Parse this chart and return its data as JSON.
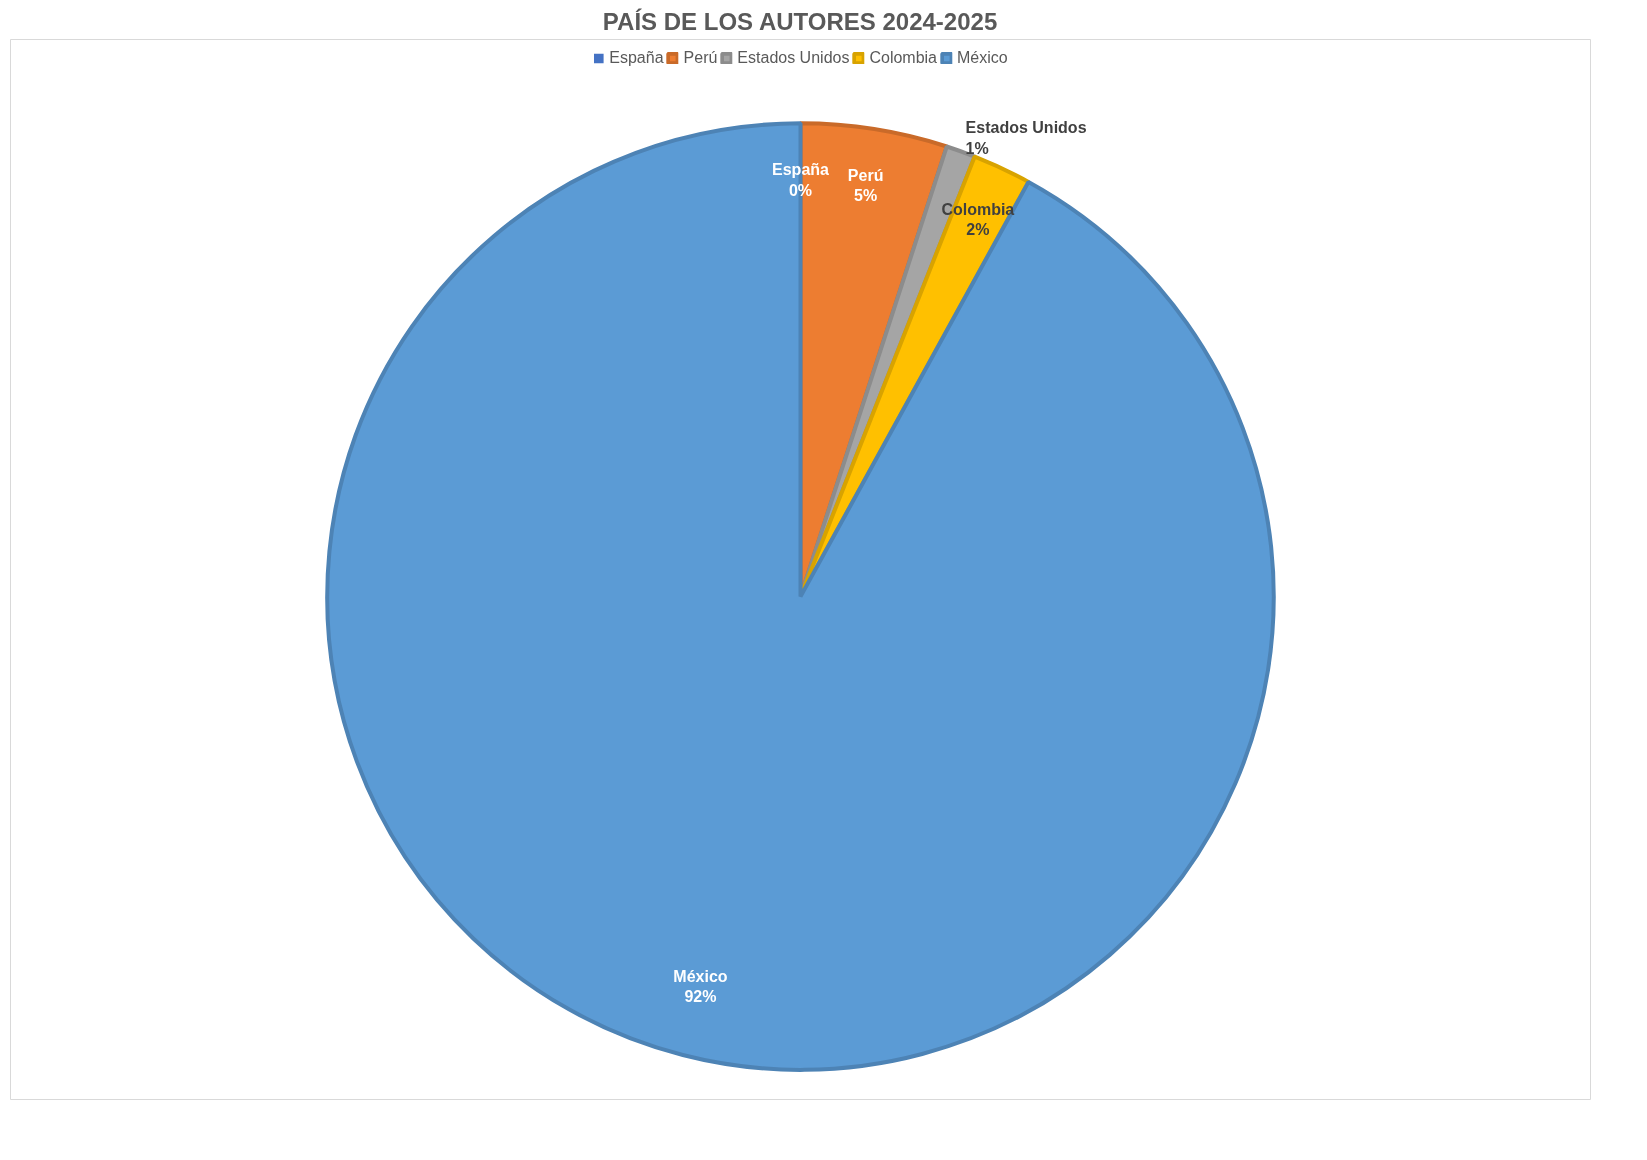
{
  "chart_data": {
    "type": "pie",
    "title": "PAÍS DE LOS AUTORES 2024-2025",
    "categories": [
      "España",
      "Perú",
      "Estados Unidos",
      "Colombia",
      "México"
    ],
    "values": [
      0,
      5,
      1,
      2,
      92
    ],
    "value_labels": [
      "0%",
      "5%",
      "1%",
      "2%",
      "92%"
    ],
    "colors": [
      "#4472c4",
      "#ed7d31",
      "#a5a5a5",
      "#ffc000",
      "#5b9bd5"
    ],
    "data_labels": true,
    "legend": "top"
  }
}
